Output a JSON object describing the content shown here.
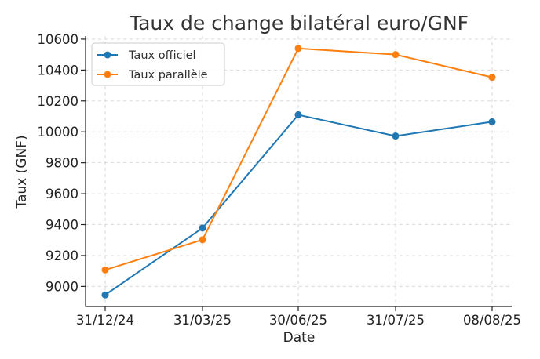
{
  "chart_data": {
    "type": "line",
    "title": "Taux de change bilatéral euro/GNF",
    "xlabel": "Date",
    "ylabel": "Taux (GNF)",
    "categories": [
      "31/12/24",
      "31/03/25",
      "30/06/25",
      "31/07/25",
      "08/08/25"
    ],
    "ylim": [
      8870,
      10620
    ],
    "yticks": [
      9000,
      9200,
      9400,
      9600,
      9800,
      10000,
      10200,
      10400,
      10600
    ],
    "grid": true,
    "legend_position": "top-left",
    "series": [
      {
        "name": "Taux officiel",
        "color": "#1f77b4",
        "values": [
          8945,
          9378,
          10110,
          9973,
          10065
        ]
      },
      {
        "name": "Taux parallèle",
        "color": "#ff7f0e",
        "values": [
          9107,
          9302,
          10540,
          10500,
          10353
        ]
      }
    ]
  }
}
